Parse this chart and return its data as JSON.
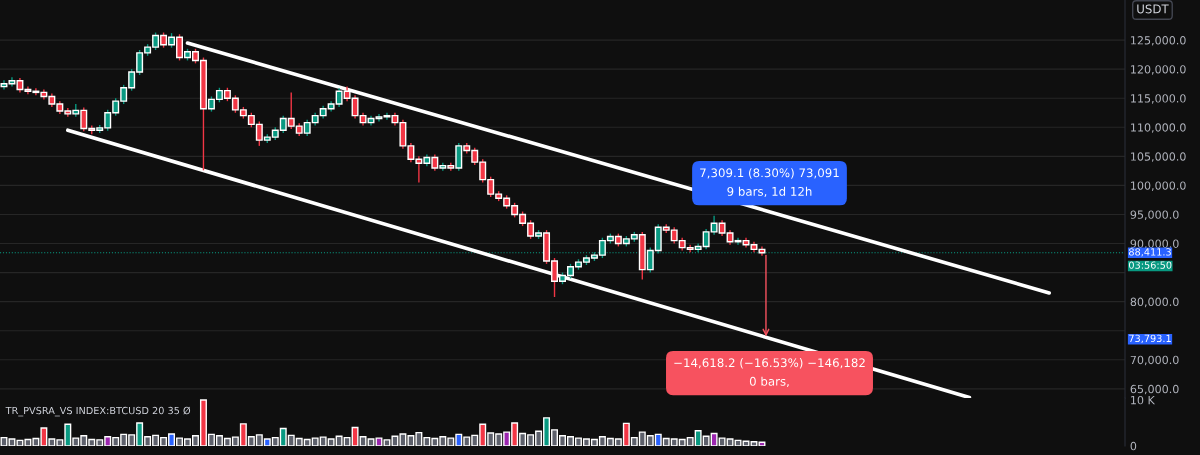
{
  "chart_data": [
    {
      "type": "candlestick",
      "categories": [
        null,
        null,
        null,
        null,
        null,
        null,
        null,
        null,
        null,
        null,
        null,
        null,
        null,
        null,
        null,
        null,
        null,
        null,
        null,
        null,
        null,
        null,
        null,
        null,
        null,
        null,
        null,
        null,
        null,
        null,
        null,
        null,
        null,
        null,
        null,
        null,
        null,
        null,
        null,
        null,
        null,
        null,
        null,
        null,
        null,
        null,
        null,
        null,
        null,
        null,
        null,
        null,
        null,
        null,
        null,
        null,
        null,
        null,
        null,
        null,
        null,
        null,
        null,
        null,
        null,
        null,
        null,
        null,
        null,
        null,
        null,
        null,
        null,
        null,
        null,
        null,
        null,
        null,
        null,
        null,
        null,
        null,
        null,
        null,
        null,
        null,
        null,
        null,
        null,
        null,
        null,
        null,
        null,
        null,
        null,
        null,
        null,
        null,
        null,
        null,
        null,
        null,
        null,
        null,
        null,
        null,
        null,
        null,
        null,
        null,
        null,
        null,
        null,
        null,
        null,
        null,
        null,
        null,
        null,
        null,
        null,
        null,
        null,
        null,
        null,
        null,
        null,
        null,
        null,
        null,
        null,
        null,
        null,
        null,
        null,
        null,
        null,
        null,
        null,
        null,
        null
      ],
      "ohlc": [
        [
          117000,
          118100,
          116500,
          117500
        ],
        [
          117500,
          118600,
          117000,
          118000
        ],
        [
          118000,
          118500,
          116000,
          116500
        ],
        [
          116500,
          117000,
          115700,
          116200
        ],
        [
          116200,
          116700,
          115500,
          116000
        ],
        [
          116000,
          116500,
          114800,
          115300
        ],
        [
          115300,
          115800,
          113500,
          114000
        ],
        [
          114000,
          114500,
          112300,
          112800
        ],
        [
          112800,
          113300,
          111800,
          112300
        ],
        [
          112300,
          114000,
          111800,
          112900
        ],
        [
          112900,
          113400,
          109300,
          109800
        ],
        [
          109800,
          110300,
          108800,
          109500
        ],
        [
          109500,
          110400,
          109000,
          109900
        ],
        [
          109900,
          113000,
          109400,
          112500
        ],
        [
          112500,
          115000,
          112000,
          114500
        ],
        [
          114500,
          117300,
          114000,
          116800
        ],
        [
          116800,
          120000,
          116300,
          119500
        ],
        [
          119500,
          123300,
          119000,
          122800
        ],
        [
          122800,
          124300,
          122300,
          123800
        ],
        [
          123800,
          126300,
          123300,
          125800
        ],
        [
          125800,
          126300,
          123700,
          124200
        ],
        [
          124200,
          126200,
          123700,
          125500
        ],
        [
          125500,
          126000,
          121500,
          122000
        ],
        [
          122000,
          123500,
          121500,
          123000
        ],
        [
          123000,
          123500,
          121000,
          121500
        ],
        [
          121500,
          122000,
          102600,
          113200
        ],
        [
          113200,
          115300,
          112700,
          114800
        ],
        [
          114800,
          116800,
          114300,
          116300
        ],
        [
          116300,
          116800,
          114500,
          115000
        ],
        [
          115000,
          115500,
          112500,
          113000
        ],
        [
          113000,
          113500,
          111500,
          112000
        ],
        [
          112000,
          112500,
          110000,
          110500
        ],
        [
          110500,
          111000,
          106800,
          107800
        ],
        [
          107800,
          108800,
          107300,
          108300
        ],
        [
          108300,
          110000,
          107800,
          109500
        ],
        [
          109500,
          112000,
          109000,
          111500
        ],
        [
          111500,
          116000,
          109700,
          110200
        ],
        [
          110200,
          110700,
          108500,
          109000
        ],
        [
          109000,
          111300,
          108500,
          110800
        ],
        [
          110800,
          112500,
          110300,
          112000
        ],
        [
          112000,
          113700,
          111500,
          113200
        ],
        [
          113200,
          114500,
          112700,
          114000
        ],
        [
          114000,
          116700,
          113500,
          116200
        ],
        [
          116200,
          117000,
          114500,
          115000
        ],
        [
          115000,
          115500,
          111500,
          112000
        ],
        [
          112000,
          112500,
          110300,
          110800
        ],
        [
          110800,
          112000,
          110300,
          111500
        ],
        [
          111500,
          112300,
          111000,
          111800
        ],
        [
          111800,
          112500,
          111300,
          112000
        ],
        [
          112000,
          112500,
          110300,
          110800
        ],
        [
          110800,
          111300,
          106300,
          106800
        ],
        [
          106800,
          107300,
          104000,
          104500
        ],
        [
          104500,
          105000,
          100500,
          103800
        ],
        [
          103800,
          105300,
          103300,
          104800
        ],
        [
          104800,
          105300,
          102500,
          103000
        ],
        [
          103000,
          103900,
          102500,
          103400
        ],
        [
          103400,
          103900,
          102500,
          103000
        ],
        [
          103000,
          107300,
          102500,
          106800
        ],
        [
          106800,
          107300,
          105500,
          106000
        ],
        [
          106000,
          106500,
          103500,
          104000
        ],
        [
          104000,
          104500,
          100500,
          101000
        ],
        [
          101000,
          101500,
          98000,
          98500
        ],
        [
          98500,
          99000,
          97300,
          97800
        ],
        [
          97800,
          98300,
          96000,
          96500
        ],
        [
          96500,
          97000,
          94500,
          95000
        ],
        [
          95000,
          95500,
          93000,
          93500
        ],
        [
          93500,
          94000,
          90800,
          91300
        ],
        [
          91300,
          92300,
          90800,
          91800
        ],
        [
          91800,
          92300,
          86500,
          87000
        ],
        [
          87000,
          87500,
          80800,
          83500
        ],
        [
          83500,
          85000,
          83000,
          84500
        ],
        [
          84500,
          86500,
          84000,
          86000
        ],
        [
          86000,
          87300,
          85500,
          86800
        ],
        [
          86800,
          88000,
          86300,
          87500
        ],
        [
          87500,
          88500,
          87000,
          88000
        ],
        [
          88000,
          91000,
          87500,
          90500
        ],
        [
          90500,
          91700,
          90000,
          91200
        ],
        [
          91200,
          91700,
          89500,
          90000
        ],
        [
          90000,
          91300,
          89500,
          90800
        ],
        [
          90800,
          92000,
          90300,
          91500
        ],
        [
          91500,
          92000,
          83800,
          85500
        ],
        [
          85500,
          89300,
          85000,
          88800
        ],
        [
          88800,
          93300,
          88300,
          92800
        ],
        [
          92800,
          93300,
          91800,
          92300
        ],
        [
          92300,
          92800,
          90000,
          90500
        ],
        [
          90500,
          91000,
          88800,
          89300
        ],
        [
          89300,
          89800,
          88500,
          89000
        ],
        [
          89000,
          90000,
          88500,
          89500
        ],
        [
          89500,
          92500,
          89000,
          92000
        ],
        [
          92000,
          94800,
          91500,
          93500
        ],
        [
          93500,
          94000,
          91300,
          91800
        ],
        [
          91800,
          92300,
          89800,
          90300
        ],
        [
          90300,
          91000,
          89800,
          90500
        ],
        [
          90500,
          91000,
          89300,
          89800
        ],
        [
          89800,
          90300,
          88500,
          89000
        ],
        [
          89000,
          89500,
          87900,
          88411.3
        ],
        null,
        null,
        null,
        null,
        null,
        null,
        null,
        null,
        null,
        null,
        null,
        null,
        null,
        null,
        null,
        null,
        null,
        null,
        null,
        null,
        null,
        null,
        null,
        null,
        null,
        null,
        null,
        null,
        null,
        null,
        null,
        null,
        null,
        null,
        null,
        null,
        null,
        null,
        null,
        null,
        null,
        null,
        null,
        null,
        null
      ],
      "series": [
        {
          "type": "line",
          "color": "#ffffff",
          "values": [
            null,
            null,
            null,
            null,
            null,
            null,
            null,
            null,
            null,
            null,
            null,
            null,
            null,
            null,
            null,
            null,
            null,
            null,
            null,
            null,
            null,
            null,
            null,
            124500,
            null,
            null,
            null,
            null,
            null,
            null,
            null,
            null,
            null,
            null,
            null,
            null,
            null,
            null,
            null,
            null,
            null,
            null,
            null,
            null,
            null,
            null,
            null,
            null,
            null,
            null,
            null,
            null,
            null,
            null,
            null,
            null,
            null,
            null,
            null,
            null,
            null,
            null,
            null,
            null,
            null,
            null,
            null,
            null,
            null,
            null,
            null,
            null,
            null,
            null,
            null,
            null,
            null,
            null,
            null,
            null,
            null,
            null,
            null,
            null,
            null,
            null,
            null,
            null,
            null,
            null,
            null,
            null,
            null,
            null,
            null,
            null,
            null,
            null,
            null,
            null,
            null,
            null,
            null,
            null,
            null,
            null,
            null,
            null,
            null,
            null,
            null,
            null,
            null,
            null,
            null,
            null,
            null,
            null,
            null,
            null,
            null,
            null,
            null,
            null,
            null,
            null,
            null,
            null,
            null,
            null,
            null,
            81500,
            null,
            null,
            null,
            null,
            null,
            null,
            null,
            null,
            null
          ]
        },
        {
          "type": "line",
          "color": "#ffffff",
          "values": [
            null,
            null,
            null,
            null,
            null,
            null,
            null,
            null,
            109500,
            null,
            null,
            null,
            null,
            null,
            null,
            null,
            null,
            null,
            null,
            null,
            null,
            null,
            null,
            null,
            null,
            null,
            null,
            null,
            null,
            null,
            null,
            null,
            null,
            null,
            null,
            null,
            null,
            null,
            null,
            null,
            null,
            null,
            null,
            null,
            null,
            null,
            null,
            null,
            null,
            null,
            null,
            null,
            null,
            null,
            null,
            null,
            null,
            null,
            null,
            null,
            null,
            null,
            null,
            null,
            null,
            null,
            null,
            null,
            null,
            null,
            null,
            null,
            null,
            null,
            null,
            null,
            null,
            null,
            null,
            null,
            null,
            null,
            null,
            null,
            null,
            null,
            null,
            null,
            null,
            null,
            null,
            null,
            null,
            null,
            null,
            null,
            null,
            null,
            null,
            null,
            null,
            null,
            null,
            null,
            null,
            null,
            null,
            null,
            null,
            null,
            null,
            null,
            null,
            null,
            null,
            null,
            null,
            null,
            null,
            null,
            null,
            63500,
            null,
            null,
            null,
            null,
            null,
            null,
            null,
            null,
            null,
            null,
            null,
            null,
            null,
            null,
            null,
            null,
            null,
            null,
            null
          ]
        }
      ],
      "ylim": [
        63400,
        131900
      ],
      "yticks": [
        {
          "value": 65000,
          "label": "65,000.0"
        },
        {
          "value": 70000,
          "label": "70,000.0"
        },
        {
          "value": 75000,
          "label": null
        },
        {
          "value": 80000,
          "label": "80,000.0"
        },
        {
          "value": 85000,
          "label": null
        },
        {
          "value": 90000,
          "label": "90,000.0"
        },
        {
          "value": 95000,
          "label": "95,000.0"
        },
        {
          "value": 100000,
          "label": "100,000.0"
        },
        {
          "value": 105000,
          "label": "105,000.0"
        },
        {
          "value": 110000,
          "label": "110,000.0"
        },
        {
          "value": 115000,
          "label": "115,000.0"
        },
        {
          "value": 120000,
          "label": "120,000.0"
        },
        {
          "value": 125000,
          "label": "125,000.0"
        }
      ],
      "grid": "y",
      "tick_labels": "y",
      "ref_lines": [
        {
          "axis": "y",
          "value": 88411.3,
          "label": "88,411.3",
          "color": "#089981",
          "line_style": "dotted"
        }
      ],
      "annotations": [
        "7,309.1 (8.30%) 73,091\n9 bars, 1d 12h",
        "−14,618.2 (−16.53%) −146,182\n0 bars,",
        "73,793.1",
        "03:56:50",
        "USDT"
      ]
    },
    {
      "type": "bar",
      "title": "TR_PVSRA_VS INDEX:BTCUSD 20 35 Ø",
      "categories": [
        null,
        null,
        null,
        null,
        null,
        null,
        null,
        null,
        null,
        null,
        null,
        null,
        null,
        null,
        null,
        null,
        null,
        null,
        null,
        null,
        null,
        null,
        null,
        null,
        null,
        null,
        null,
        null,
        null,
        null,
        null,
        null,
        null,
        null,
        null,
        null,
        null,
        null,
        null,
        null,
        null,
        null,
        null,
        null,
        null,
        null,
        null,
        null,
        null,
        null,
        null,
        null,
        null,
        null,
        null,
        null,
        null,
        null,
        null,
        null,
        null,
        null,
        null,
        null,
        null,
        null,
        null,
        null,
        null,
        null,
        null,
        null,
        null,
        null,
        null,
        null,
        null,
        null,
        null,
        null,
        null,
        null,
        null,
        null,
        null,
        null,
        null,
        null,
        null,
        null,
        null,
        null,
        null,
        null,
        null,
        null,
        null,
        null,
        null,
        null,
        null,
        null,
        null,
        null,
        null,
        null,
        null,
        null,
        null,
        null,
        null,
        null,
        null,
        null,
        null,
        null,
        null,
        null,
        null,
        null,
        null,
        null,
        null,
        null,
        null,
        null,
        null,
        null,
        null,
        null,
        null,
        null,
        null,
        null,
        null,
        null,
        null,
        null,
        null,
        null,
        null
      ],
      "values": [
        1800,
        1500,
        1200,
        1400,
        1600,
        3900,
        1500,
        1300,
        4700,
        1700,
        2200,
        1400,
        1300,
        2000,
        1800,
        2500,
        2400,
        5000,
        2000,
        2300,
        1800,
        2600,
        1700,
        1500,
        2200,
        10000,
        2500,
        2200,
        1600,
        1900,
        4800,
        2000,
        2400,
        1500,
        1800,
        3800,
        2300,
        1600,
        1400,
        1700,
        1900,
        1500,
        2100,
        1800,
        4000,
        2000,
        1500,
        1700,
        1300,
        2100,
        2600,
        2200,
        2900,
        1800,
        1600,
        2000,
        1700,
        2500,
        1900,
        2300,
        4700,
        2800,
        2600,
        3000,
        5000,
        2700,
        2400,
        3200,
        6100,
        3500,
        2200,
        2000,
        1700,
        1500,
        1400,
        2000,
        1600,
        1500,
        4900,
        1800,
        3000,
        2200,
        2500,
        1600,
        1500,
        1400,
        1800,
        3300,
        2100,
        2700,
        1700,
        1500,
        1200,
        1000,
        900,
        800,
        null,
        null,
        null,
        null,
        null,
        null,
        null,
        null,
        null,
        null,
        null,
        null,
        null,
        null,
        null,
        null,
        null,
        null,
        null,
        null,
        null,
        null,
        null,
        null,
        null,
        null,
        null,
        null,
        null,
        null,
        null,
        null,
        null,
        null,
        null,
        null,
        null,
        null,
        null,
        null,
        null,
        null,
        null,
        null,
        null
      ],
      "colors": [
        "#5d606b",
        "#5d606b",
        "#5d606b",
        "#5d606b",
        "#5d606b",
        "#f23645",
        "#5d606b",
        "#5d606b",
        "#089981",
        "#5d606b",
        "#5d606b",
        "#5d606b",
        "#5d606b",
        "#9c27b0",
        "#5d606b",
        "#5d606b",
        "#5d606b",
        "#089981",
        "#5d606b",
        "#5d606b",
        "#5d606b",
        "#2962ff",
        "#5d606b",
        "#5d606b",
        "#5d606b",
        "#f23645",
        "#5d606b",
        "#5d606b",
        "#5d606b",
        "#5d606b",
        "#f23645",
        "#5d606b",
        "#5d606b",
        "#2962ff",
        "#5d606b",
        "#089981",
        "#5d606b",
        "#5d606b",
        "#5d606b",
        "#5d606b",
        "#5d606b",
        "#5d606b",
        "#5d606b",
        "#5d606b",
        "#f23645",
        "#5d606b",
        "#5d606b",
        "#9c27b0",
        "#5d606b",
        "#5d606b",
        "#5d606b",
        "#5d606b",
        "#5d606b",
        "#5d606b",
        "#5d606b",
        "#5d606b",
        "#5d606b",
        "#2962ff",
        "#5d606b",
        "#5d606b",
        "#f23645",
        "#5d606b",
        "#5d606b",
        "#9c27b0",
        "#f23645",
        "#5d606b",
        "#5d606b",
        "#5d606b",
        "#089981",
        "#5d606b",
        "#5d606b",
        "#5d606b",
        "#5d606b",
        "#5d606b",
        "#5d606b",
        "#5d606b",
        "#5d606b",
        "#5d606b",
        "#f23645",
        "#5d606b",
        "#5d606b",
        "#5d606b",
        "#2962ff",
        "#5d606b",
        "#5d606b",
        "#5d606b",
        "#5d606b",
        "#089981",
        "#5d606b",
        "#9c27b0",
        "#5d606b",
        "#5d606b",
        "#5d606b",
        "#5d606b",
        "#5d606b",
        "#9c27b0",
        null,
        null,
        null,
        null,
        null,
        null,
        null,
        null,
        null,
        null,
        null,
        null,
        null,
        null,
        null,
        null,
        null,
        null,
        null,
        null,
        null,
        null,
        null,
        null,
        null,
        null,
        null,
        null,
        null,
        null,
        null,
        null,
        null,
        null,
        null,
        null,
        null,
        null,
        null,
        null,
        null,
        null,
        null,
        null,
        null
      ],
      "ylim": [
        0,
        10400
      ],
      "yticks": [
        0,
        {
          "value": 10000,
          "label": "10 K"
        }
      ],
      "tick_labels": "y"
    }
  ]
}
